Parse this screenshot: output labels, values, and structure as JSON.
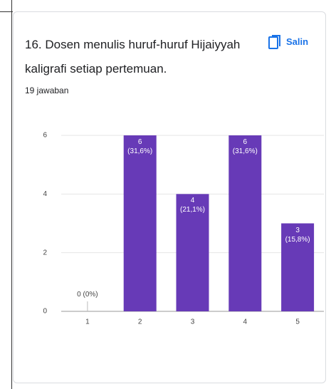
{
  "chart_data": {
    "type": "bar",
    "title": "16. Dosen menulis huruf-huruf Hijaiyyah kaligrafi setiap pertemuan.",
    "button": "Salin",
    "subtitle": "19 jawaban",
    "categories": [
      "1",
      "2",
      "3",
      "4",
      "5"
    ],
    "values": [
      0,
      6,
      4,
      6,
      3
    ],
    "value_labels": [
      "0 (0%)",
      "6\n(31,6%)",
      "4\n(21,1%)",
      "6\n(31,6%)",
      "3\n(15,8%)"
    ],
    "color": "#673ab7",
    "ylim": [
      0,
      6
    ],
    "yticks": [
      0,
      2,
      4,
      6
    ],
    "grid": true
  }
}
